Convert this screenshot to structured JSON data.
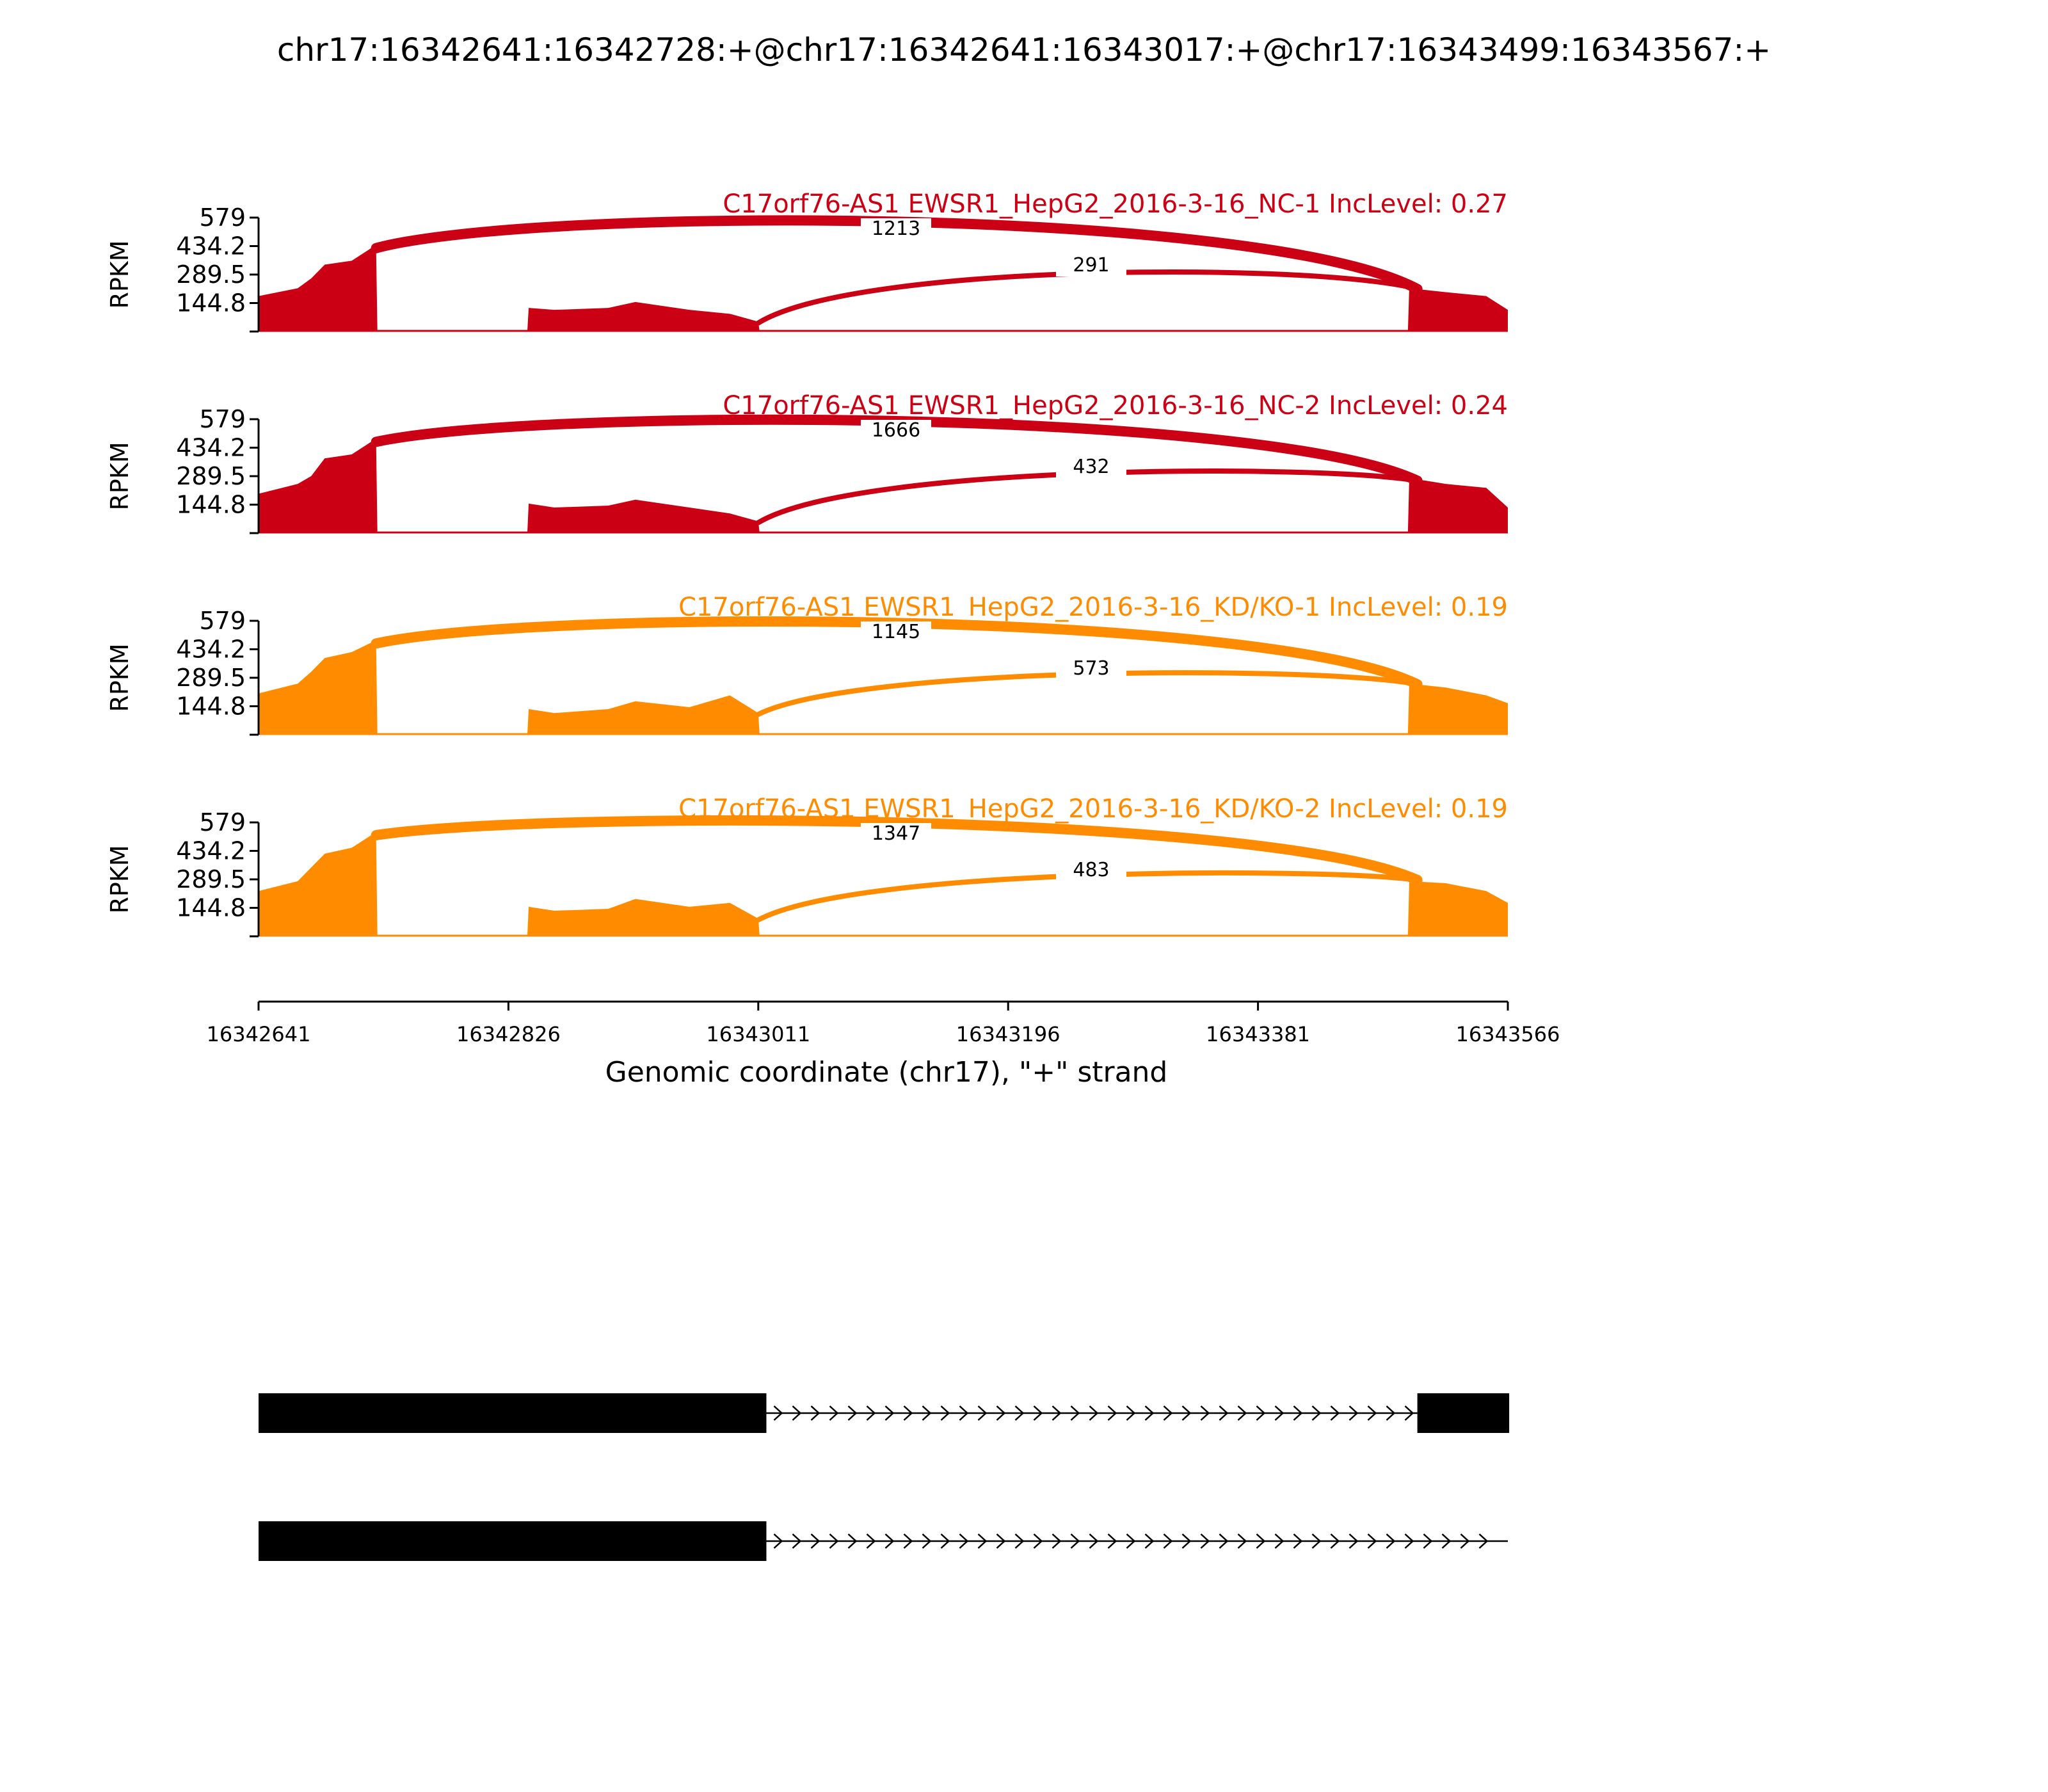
{
  "chart_data": {
    "type": "area",
    "title": "chr17:16342641:16342728:+@chr17:16342641:16343017:+@chr17:16343499:16343567:+",
    "ylabel": "RPKM",
    "xlabel": "Genomic coordinate (chr17), \"+\" strand",
    "xlim": [
      16342641,
      16343566
    ],
    "ylim": [
      0,
      579
    ],
    "y_ticks": [
      "579",
      "434.2",
      "289.5",
      "144.8"
    ],
    "x_ticks": [
      {
        "value": 16342641,
        "label": "16342641"
      },
      {
        "value": 16342826,
        "label": "16342826"
      },
      {
        "value": 16343011,
        "label": "16343011"
      },
      {
        "value": 16343196,
        "label": "16343196"
      },
      {
        "value": 16343381,
        "label": "16343381"
      },
      {
        "value": 16343566,
        "label": "16343566"
      }
    ],
    "series": [
      {
        "name": "C17orf76-AS1 EWSR1_HepG2_2016-3-16_NC-1 IncLevel: 0.27",
        "color": "#cc0014",
        "coverage": [
          [
            16342641,
            180
          ],
          [
            16342670,
            220
          ],
          [
            16342680,
            270
          ],
          [
            16342690,
            340
          ],
          [
            16342710,
            360
          ],
          [
            16342728,
            440
          ],
          [
            16342729,
            0
          ],
          [
            16342840,
            0
          ],
          [
            16342841,
            120
          ],
          [
            16342860,
            110
          ],
          [
            16342900,
            120
          ],
          [
            16342920,
            150
          ],
          [
            16342960,
            110
          ],
          [
            16342990,
            90
          ],
          [
            16343011,
            50
          ],
          [
            16343012,
            0
          ],
          [
            16343492,
            0
          ],
          [
            16343493,
            220
          ],
          [
            16343520,
            200
          ],
          [
            16343550,
            180
          ],
          [
            16343566,
            110
          ]
        ],
        "junctions": [
          {
            "start": 16342728,
            "end": 16343499,
            "count": "1213"
          },
          {
            "start": 16343011,
            "end": 16343499,
            "count": "291"
          }
        ]
      },
      {
        "name": "C17orf76-AS1 EWSR1_HepG2_2016-3-16_NC-2 IncLevel: 0.24",
        "color": "#cc0014",
        "coverage": [
          [
            16342641,
            200
          ],
          [
            16342670,
            250
          ],
          [
            16342680,
            290
          ],
          [
            16342690,
            380
          ],
          [
            16342710,
            400
          ],
          [
            16342728,
            480
          ],
          [
            16342729,
            0
          ],
          [
            16342840,
            0
          ],
          [
            16342841,
            150
          ],
          [
            16342860,
            130
          ],
          [
            16342900,
            140
          ],
          [
            16342920,
            170
          ],
          [
            16342960,
            130
          ],
          [
            16342990,
            100
          ],
          [
            16343011,
            60
          ],
          [
            16343012,
            0
          ],
          [
            16343492,
            0
          ],
          [
            16343493,
            280
          ],
          [
            16343520,
            250
          ],
          [
            16343550,
            230
          ],
          [
            16343566,
            130
          ]
        ],
        "junctions": [
          {
            "start": 16342728,
            "end": 16343499,
            "count": "1666"
          },
          {
            "start": 16343011,
            "end": 16343499,
            "count": "432"
          }
        ]
      },
      {
        "name": "C17orf76-AS1 EWSR1_HepG2_2016-3-16_KD/KO-1 IncLevel: 0.19",
        "color": "#ff8c00",
        "coverage": [
          [
            16342641,
            210
          ],
          [
            16342670,
            260
          ],
          [
            16342680,
            320
          ],
          [
            16342690,
            390
          ],
          [
            16342710,
            420
          ],
          [
            16342728,
            480
          ],
          [
            16342729,
            0
          ],
          [
            16342840,
            0
          ],
          [
            16342841,
            130
          ],
          [
            16342860,
            110
          ],
          [
            16342900,
            130
          ],
          [
            16342920,
            170
          ],
          [
            16342960,
            140
          ],
          [
            16342990,
            200
          ],
          [
            16343011,
            110
          ],
          [
            16343012,
            0
          ],
          [
            16343492,
            0
          ],
          [
            16343493,
            260
          ],
          [
            16343520,
            240
          ],
          [
            16343550,
            200
          ],
          [
            16343566,
            160
          ]
        ],
        "junctions": [
          {
            "start": 16342728,
            "end": 16343499,
            "count": "1145"
          },
          {
            "start": 16343011,
            "end": 16343499,
            "count": "573"
          }
        ]
      },
      {
        "name": "C17orf76-AS1 EWSR1_HepG2_2016-3-16_KD/KO-2 IncLevel: 0.19",
        "color": "#ff8c00",
        "coverage": [
          [
            16342641,
            230
          ],
          [
            16342670,
            280
          ],
          [
            16342680,
            350
          ],
          [
            16342690,
            420
          ],
          [
            16342710,
            450
          ],
          [
            16342728,
            530
          ],
          [
            16342729,
            0
          ],
          [
            16342840,
            0
          ],
          [
            16342841,
            150
          ],
          [
            16342860,
            130
          ],
          [
            16342900,
            140
          ],
          [
            16342920,
            190
          ],
          [
            16342960,
            150
          ],
          [
            16342990,
            170
          ],
          [
            16343011,
            90
          ],
          [
            16343012,
            0
          ],
          [
            16343492,
            0
          ],
          [
            16343493,
            280
          ],
          [
            16343520,
            270
          ],
          [
            16343550,
            230
          ],
          [
            16343566,
            170
          ]
        ],
        "junctions": [
          {
            "start": 16342728,
            "end": 16343499,
            "count": "1347"
          },
          {
            "start": 16343011,
            "end": 16343499,
            "count": "483"
          }
        ]
      }
    ],
    "isoforms": [
      {
        "exons": [
          [
            16342641,
            16343017
          ],
          [
            16343499,
            16343567
          ]
        ]
      },
      {
        "exons": [
          [
            16342641,
            16343017
          ]
        ]
      }
    ]
  }
}
